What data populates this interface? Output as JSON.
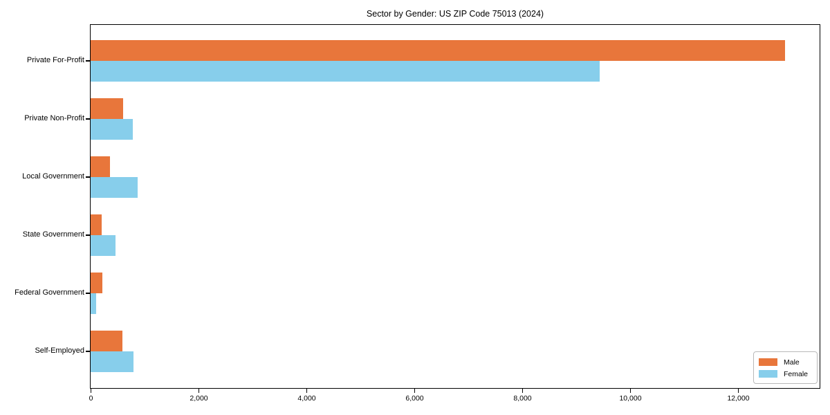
{
  "title": "Sector by Gender: US ZIP Code 75013 (2024)",
  "chart_data": {
    "type": "bar",
    "orientation": "horizontal",
    "title": "Sector by Gender: US ZIP Code 75013 (2024)",
    "categories": [
      "Private For-Profit",
      "Private Non-Profit",
      "Local Government",
      "State Government",
      "Federal Government",
      "Self-Employed"
    ],
    "series": [
      {
        "name": "Male",
        "color": "#E8763B",
        "values": [
          12870,
          600,
          355,
          205,
          220,
          585
        ]
      },
      {
        "name": "Female",
        "color": "#87CEEB",
        "values": [
          9440,
          775,
          865,
          455,
          105,
          800
        ]
      }
    ],
    "xlabel": "",
    "ylabel": "",
    "xlim": [
      0,
      13500
    ],
    "xticks": [
      0,
      2000,
      4000,
      6000,
      8000,
      10000,
      12000
    ],
    "xticklabels": [
      "0",
      "2,000",
      "4,000",
      "6,000",
      "8,000",
      "10,000",
      "12,000"
    ],
    "grid": false,
    "legend_position": "lower right",
    "colors": {
      "male": "#E8763B",
      "female": "#87CEEB",
      "spine": "#000000",
      "legend_border": "#b9b9b9"
    }
  }
}
